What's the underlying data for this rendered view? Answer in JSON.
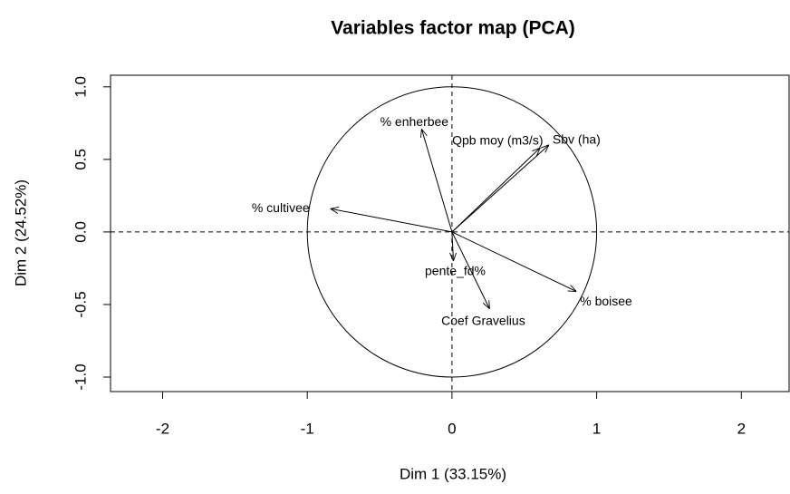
{
  "chart_data": {
    "type": "pca_variables",
    "title": "Variables factor map (PCA)",
    "x_label": "Dim 1 (33.15%)",
    "y_label": "Dim 2 (24.52%)",
    "labels": [
      "% enherbee",
      "Sbv (ha)",
      "Qpb moy (m3/s)",
      "% cultivee",
      "pente_fd%",
      "Coef Gravelius",
      "% boisee"
    ],
    "x": [
      -0.21,
      0.67,
      0.61,
      -0.84,
      0.01,
      0.26,
      0.86
    ],
    "values": [
      0.71,
      0.6,
      0.58,
      0.16,
      -0.2,
      -0.53,
      -0.41
    ],
    "color": "#000000",
    "xlim": [
      -2.36,
      2.33
    ],
    "ylim": [
      -1.1,
      1.08
    ],
    "xticks": [
      -2,
      -1,
      0,
      1,
      2
    ],
    "yticks": [
      {
        "value": -1,
        "label": "-1.0"
      },
      -0.5,
      {
        "value": 0,
        "label": "0.0"
      },
      0.5,
      {
        "value": 1,
        "label": "1.0"
      }
    ]
  }
}
